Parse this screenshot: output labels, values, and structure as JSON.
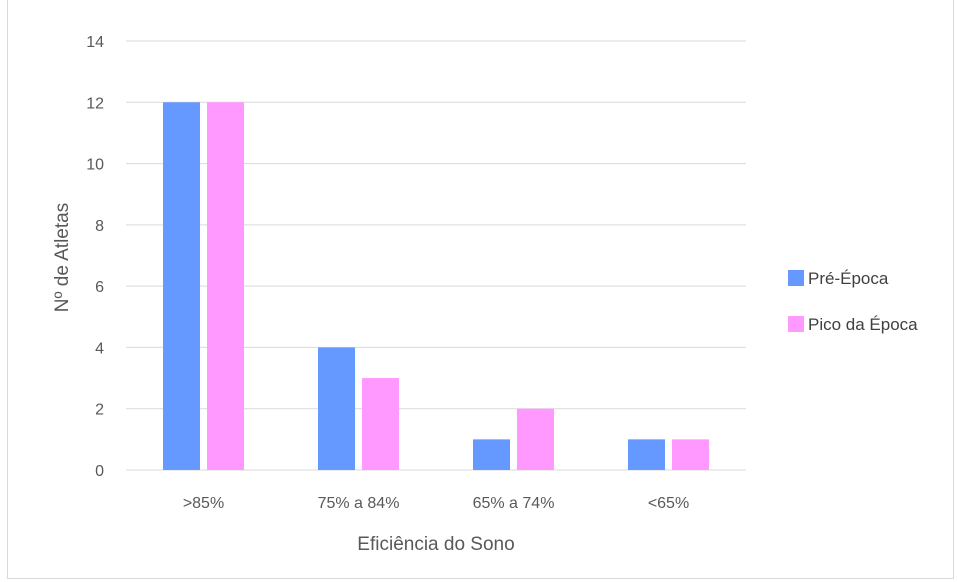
{
  "chart_data": {
    "type": "bar",
    "title": "",
    "xlabel": "Eficiência do Sono",
    "ylabel": "Nº de Atletas",
    "categories": [
      ">85%",
      "75% a 84%",
      "65% a 74%",
      "<65%"
    ],
    "series": [
      {
        "name": "Pré-Época",
        "color": "#6699ff",
        "values": [
          12,
          4,
          1,
          1
        ]
      },
      {
        "name": "Pico da Época",
        "color": "#ff99ff",
        "values": [
          12,
          3,
          2,
          1
        ]
      }
    ],
    "ylim": [
      0,
      14
    ],
    "yticks": [
      "0",
      "2",
      "4",
      "6",
      "8",
      "10",
      "12",
      "14"
    ],
    "grid": true,
    "legend_position": "right"
  }
}
